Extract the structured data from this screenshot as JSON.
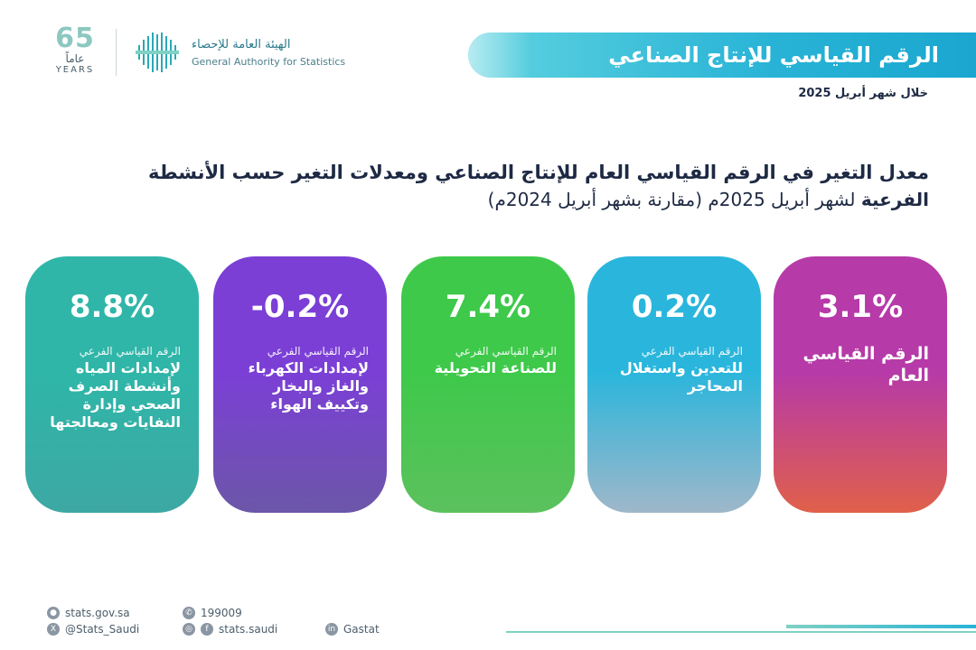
{
  "header": {
    "title": "الرقم القياسي للإنتاج الصناعي",
    "period": "خلال شهر أبريل 2025"
  },
  "logos": {
    "gastat_ar": "الهيئة العامة للإحصاء",
    "gastat_en": "General Authority for Statistics",
    "anniversary_number": "65",
    "anniversary_ar": "عاماً",
    "anniversary_en": "YEARS"
  },
  "headline": {
    "line1": "معدل التغير في الرقم القياسي العام للإنتاج الصناعي ومعدلات التغير حسب الأنشطة",
    "line2_bold": "الفرعية",
    "line2_rest": " لشهر أبريل 2025م (مقارنة بشهر أبريل 2024م)"
  },
  "cards": [
    {
      "value": "3.1%",
      "subtitle": "",
      "label": "الرقم القياسي العام",
      "color_top": "#b63aa8",
      "color_bottom": "#e0604a"
    },
    {
      "value": "0.2%",
      "subtitle": "الرقم القياسي الفرعي",
      "label": "للتعدين واستغلال المحاجر",
      "color_top": "#2ab6dc",
      "color_bottom": "#9fb7c9"
    },
    {
      "value": "7.4%",
      "subtitle": "الرقم القياسي الفرعي",
      "label": "للصناعة التحويلية",
      "color_top": "#3ec94a",
      "color_bottom": "#5cc15d"
    },
    {
      "value": "-0.2%",
      "subtitle": "الرقم القياسي الفرعي",
      "label": "لإمدادات الكهرباء والغاز والبخار وتكييف الهواء",
      "color_top": "#7b3fd6",
      "color_bottom": "#6c56a8"
    },
    {
      "value": "8.8%",
      "subtitle": "الرقم القياسي الفرعي",
      "label": "لإمدادات المياه وأنشطة الصرف الصحي وإدارة النفايات ومعالجتها",
      "color_top": "#2fb6a8",
      "color_bottom": "#3da8a4"
    }
  ],
  "footer": {
    "website": "stats.gov.sa",
    "phone": "199009",
    "twitter": "@Stats_Saudi",
    "social": "stats.saudi",
    "linkedin": "Gastat"
  }
}
